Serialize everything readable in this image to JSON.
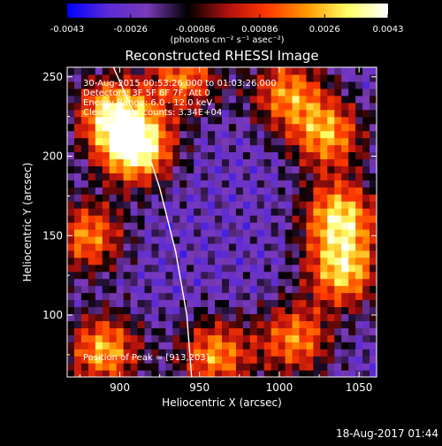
{
  "chart_data": {
    "type": "heatmap",
    "title": "Reconstructed RHESSI Image",
    "xlabel": "Heliocentric X (arcsec)",
    "ylabel": "Heliocentric Y (arcsec)",
    "xlim": [
      867,
      1061
    ],
    "ylim": [
      61,
      256
    ],
    "x_ticks": [
      900,
      950,
      1000,
      1050
    ],
    "y_ticks": [
      100,
      150,
      200,
      250
    ],
    "grid": false,
    "colorbar": {
      "position": "top",
      "range": [
        -0.0043,
        0.0043
      ],
      "tick_values": [
        -0.0043,
        -0.0026,
        -0.00086,
        0.00086,
        0.0026,
        0.0043
      ],
      "tick_labels": [
        "-0.0043",
        "-0.0026",
        "-0.00086",
        "0.00086",
        "0.0026",
        "0.0043"
      ],
      "units_label": "(photons cm⁻² s⁻¹ asec⁻²)",
      "colors": [
        "#0000ff",
        "#5a2ad6",
        "#7a3ab8",
        "#000000",
        "#b01010",
        "#ff3a00",
        "#ff9a00",
        "#ffff66",
        "#ffffff"
      ]
    },
    "annotations": {
      "time_range": "30-Aug-2015 00:53:26.000 to 01:03:26.000",
      "detectors": "Detectors: 3F 5F 6F 7F, Att 0",
      "energy": "Energy Range: 6.0 - 12.0 keV",
      "method": "Clean",
      "total_counts": "Total counts: 3.34E+04",
      "peak": "Position of Peak = [913,203]"
    },
    "limb_curve": [
      [
        896,
        256
      ],
      [
        912,
        220
      ],
      [
        925,
        180
      ],
      [
        935,
        140
      ],
      [
        942,
        100
      ],
      [
        945,
        61
      ]
    ],
    "peak_position": [
      913,
      203
    ],
    "hot_spots": [
      {
        "x": 910,
        "y": 206,
        "intensity": 0.0043
      },
      {
        "x": 895,
        "y": 228,
        "intensity": 0.0026
      },
      {
        "x": 1038,
        "y": 162,
        "intensity": 0.003
      },
      {
        "x": 1040,
        "y": 128,
        "intensity": 0.0027
      },
      {
        "x": 1030,
        "y": 214,
        "intensity": 0.0022
      },
      {
        "x": 1005,
        "y": 240,
        "intensity": 0.0018
      },
      {
        "x": 890,
        "y": 78,
        "intensity": 0.0024
      },
      {
        "x": 960,
        "y": 75,
        "intensity": 0.002
      },
      {
        "x": 1010,
        "y": 85,
        "intensity": 0.0018
      },
      {
        "x": 880,
        "y": 150,
        "intensity": 0.0018
      },
      {
        "x": 940,
        "y": 250,
        "intensity": 0.0016
      }
    ]
  },
  "footer": {
    "timestamp": "18-Aug-2017 01:44"
  }
}
